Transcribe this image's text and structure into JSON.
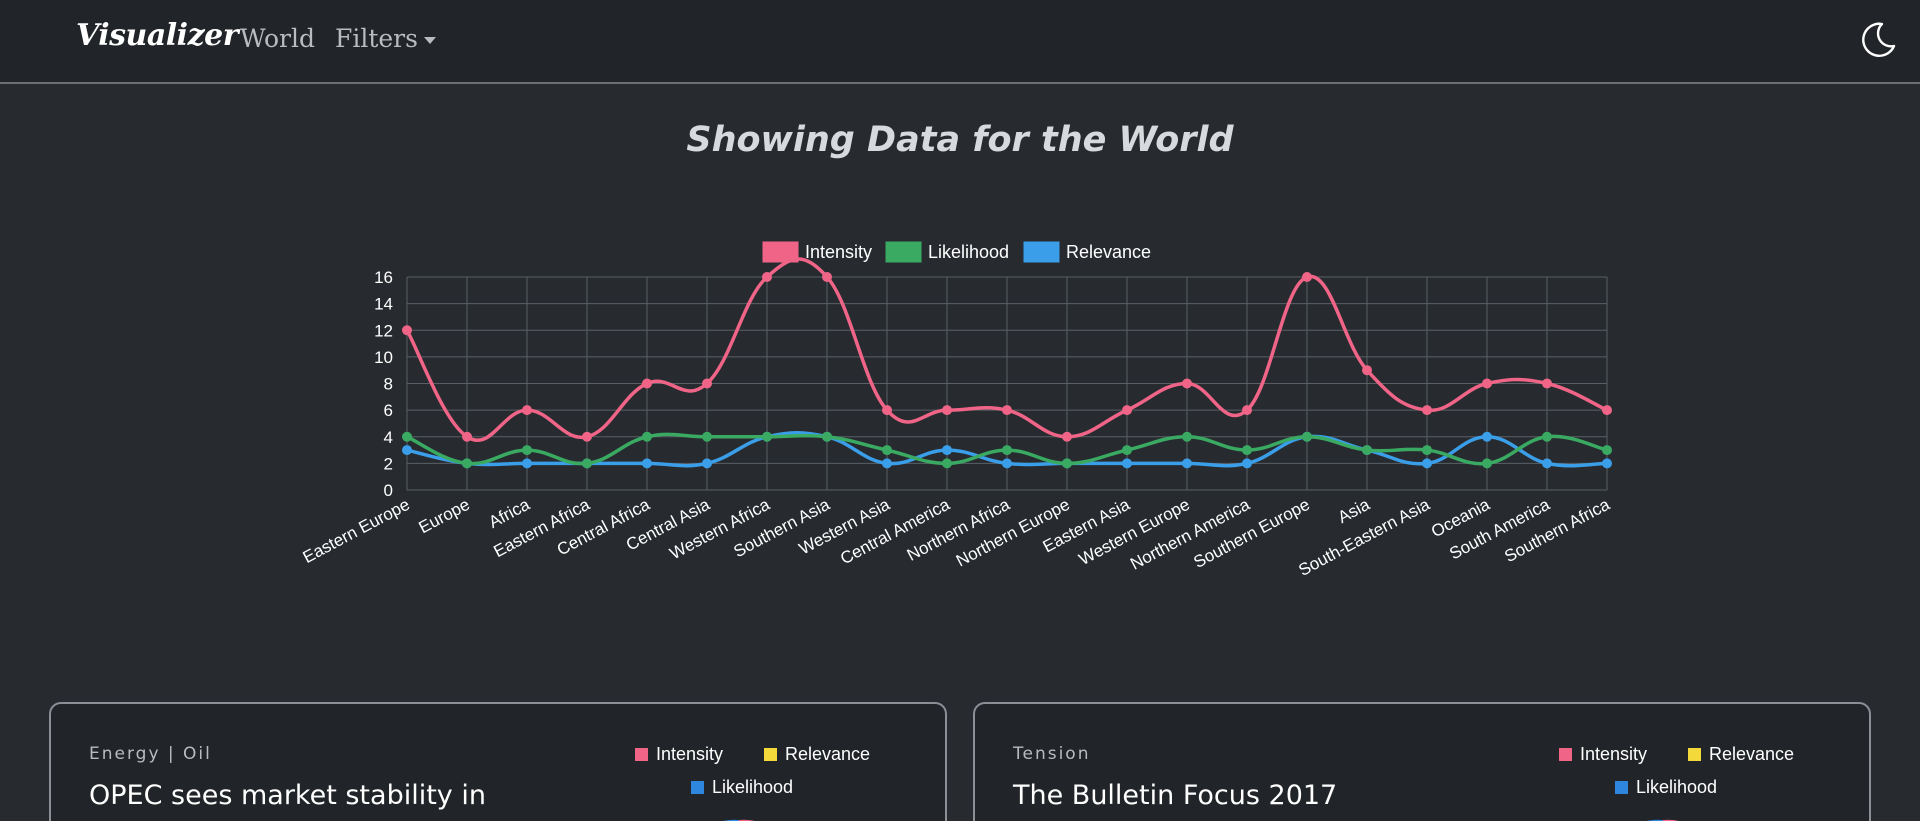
{
  "navbar": {
    "brand": "Visualizer",
    "links": [
      {
        "label": "World"
      },
      {
        "label": "Filters"
      }
    ],
    "theme_icon": "moon-icon"
  },
  "page": {
    "title": "Showing Data for the World"
  },
  "colors": {
    "intensity": "#f06587",
    "likelihood": "#3aaa62",
    "relevance": "#3a9ee8",
    "relevance_pie": "#f4d93a",
    "likelihood_pie": "#2e86de"
  },
  "chart_data": {
    "type": "line",
    "categories": [
      "Eastern Europe",
      "Europe",
      "Africa",
      "Eastern Africa",
      "Central Africa",
      "Central Asia",
      "Western Africa",
      "Southern Asia",
      "Western Asia",
      "Central America",
      "Northern Africa",
      "Northern Europe",
      "Eastern Asia",
      "Western Europe",
      "Northern America",
      "Southern Europe",
      "Asia",
      "South-Eastern Asia",
      "Oceania",
      "South America",
      "Southern Africa"
    ],
    "series": [
      {
        "name": "Intensity",
        "values": [
          12,
          4,
          6,
          4,
          8,
          8,
          16,
          16,
          6,
          6,
          6,
          4,
          6,
          8,
          6,
          16,
          9,
          6,
          8,
          8,
          6
        ]
      },
      {
        "name": "Likelihood",
        "values": [
          4,
          2,
          3,
          2,
          4,
          4,
          4,
          4,
          3,
          2,
          3,
          2,
          3,
          4,
          3,
          4,
          3,
          3,
          2,
          4,
          3
        ]
      },
      {
        "name": "Relevance",
        "values": [
          3,
          2,
          2,
          2,
          2,
          2,
          4,
          4,
          2,
          3,
          2,
          2,
          2,
          2,
          2,
          4,
          3,
          2,
          4,
          2,
          2
        ]
      }
    ],
    "yticks": [
      "0",
      "2",
      "4",
      "6",
      "8",
      "10",
      "12",
      "14",
      "16"
    ],
    "ylim": [
      0,
      16
    ],
    "legend_position": "top-center",
    "grid": true
  },
  "cards": [
    {
      "topic": "Energy | Oil",
      "title": "OPEC sees market stability in",
      "legend": [
        "Intensity",
        "Relevance",
        "Likelihood"
      ]
    },
    {
      "topic": "Tension",
      "title": "The Bulletin Focus 2017",
      "legend": [
        "Intensity",
        "Relevance",
        "Likelihood"
      ]
    }
  ]
}
